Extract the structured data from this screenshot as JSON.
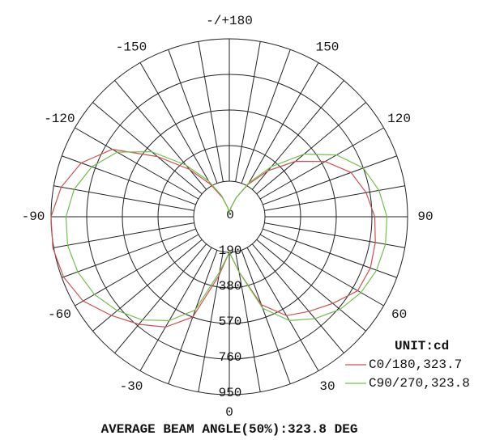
{
  "chart_data": {
    "type": "polar",
    "title": "AVERAGE BEAM ANGLE(50%):323.8 DEG",
    "unit_label": "UNIT:cd",
    "x": [
      -180,
      -170,
      -160,
      -150,
      -140,
      -130,
      -120,
      -110,
      -100,
      -90,
      -80,
      -70,
      -60,
      -50,
      -40,
      -30,
      -20,
      -10,
      0,
      10,
      20,
      30,
      40,
      50,
      60,
      70,
      80,
      90,
      100,
      110,
      120,
      130,
      140,
      150,
      160,
      170,
      180
    ],
    "xticks": [
      {
        "value": 180,
        "label": "-/+180"
      },
      -150,
      -120,
      -90,
      -60,
      -30,
      0,
      30,
      60,
      90,
      120,
      150
    ],
    "rlim": [
      0,
      950
    ],
    "rticks": [
      0,
      190,
      380,
      570,
      760,
      950
    ],
    "series": [
      {
        "name": "C0/180,323.7",
        "color": "#d05050",
        "values": [
          20,
          50,
          110,
          200,
          330,
          500,
          720,
          840,
          910,
          950,
          955,
          940,
          900,
          820,
          750,
          680,
          570,
          320,
          190,
          300,
          500,
          610,
          660,
          720,
          790,
          800,
          790,
          775,
          740,
          690,
          590,
          460,
          320,
          200,
          110,
          50,
          20
        ]
      },
      {
        "name": "C90/270,323.8",
        "color": "#70c050",
        "values": [
          20,
          50,
          120,
          220,
          360,
          540,
          690,
          780,
          840,
          870,
          875,
          860,
          830,
          780,
          720,
          640,
          530,
          300,
          190,
          300,
          520,
          640,
          710,
          770,
          810,
          835,
          845,
          840,
          810,
          760,
          660,
          520,
          350,
          210,
          110,
          50,
          20
        ]
      }
    ]
  }
}
